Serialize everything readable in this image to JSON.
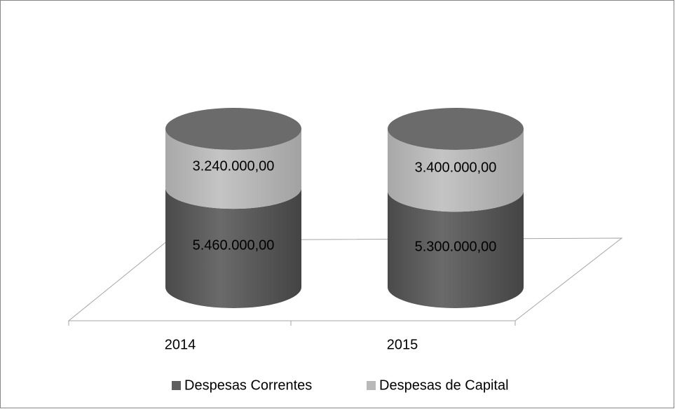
{
  "chart_data": {
    "type": "bar3d-cylinder-stacked",
    "categories": [
      "2014",
      "2015"
    ],
    "series": [
      {
        "name": "Despesas Correntes",
        "color": "#5f5f5f",
        "values": [
          5460000,
          5300000
        ],
        "value_labels": [
          "5.460.000,00",
          "5.300.000,00"
        ]
      },
      {
        "name": "Despesas de Capital",
        "color": "#b9b9b9",
        "values": [
          3240000,
          3400000
        ],
        "value_labels": [
          "3.240.000,00",
          "3.400.000,00"
        ]
      }
    ],
    "legend": "bottom"
  }
}
